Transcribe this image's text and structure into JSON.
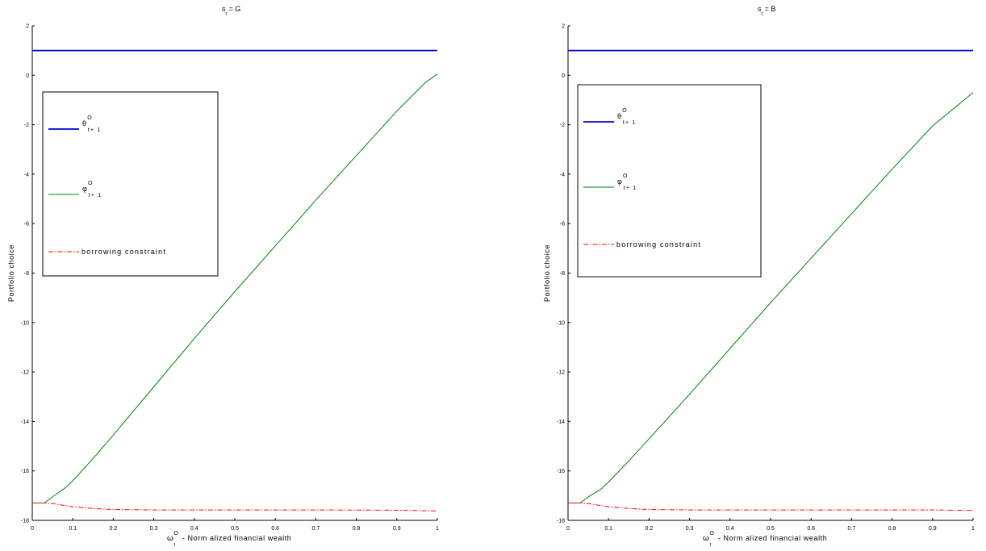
{
  "chart_data": [
    {
      "type": "line",
      "title": {
        "main": "s",
        "sub": "t",
        "tail": "=  G"
      },
      "xlabel": {
        "sym": "ω",
        "sup": "O",
        "sub": "t",
        "tail": "-  Norm alized financial wealth"
      },
      "ylabel": "Portfolio choice",
      "xlim": [
        0,
        1
      ],
      "ylim": [
        -18,
        2
      ],
      "xticks": [
        "0",
        "0.1",
        "0.2",
        "0.3",
        "0.4",
        "0.5",
        "0.6",
        "0.7",
        "0.8",
        "0.9",
        "1"
      ],
      "yticks": [
        "2",
        "0",
        "-2",
        "-4",
        "-6",
        "-8",
        "-10",
        "-12",
        "-14",
        "-16",
        "-18"
      ],
      "legend": [
        {
          "sym": "θ",
          "sup": "O",
          "sub": "t+ 1",
          "color": "#0000cc",
          "style": "solid"
        },
        {
          "sym": "φ",
          "sup": "O",
          "sub": "t+ 1",
          "color": "#008000",
          "style": "solid"
        },
        {
          "text": "borrowing constraint",
          "color": "#ff0000",
          "style": "dashdot"
        }
      ],
      "series": [
        {
          "color": "#0000cc",
          "style": "solid",
          "x": [
            0,
            1
          ],
          "y": [
            1,
            1
          ]
        },
        {
          "color": "#008000",
          "style": "solid",
          "x": [
            0,
            0.03,
            0.05,
            0.08,
            0.1,
            0.15,
            0.2,
            0.3,
            0.4,
            0.5,
            0.6,
            0.7,
            0.8,
            0.9,
            0.97,
            1
          ],
          "y": [
            -17.3,
            -17.3,
            -17.05,
            -16.7,
            -16.4,
            -15.5,
            -14.55,
            -12.6,
            -10.65,
            -8.75,
            -6.9,
            -5.05,
            -3.25,
            -1.45,
            -0.3,
            0.05
          ]
        },
        {
          "color": "#ff0000",
          "style": "dashdot",
          "x": [
            0,
            0.03,
            0.05,
            0.08,
            0.1,
            0.15,
            0.2,
            0.3,
            0.5,
            0.7,
            0.9,
            1
          ],
          "y": [
            -17.3,
            -17.3,
            -17.32,
            -17.4,
            -17.45,
            -17.52,
            -17.56,
            -17.58,
            -17.58,
            -17.58,
            -17.59,
            -17.62
          ]
        }
      ]
    },
    {
      "type": "line",
      "title": {
        "main": "s",
        "sub": "t",
        "tail": "=  B"
      },
      "xlabel": {
        "sym": "ω",
        "sup": "O",
        "sub": "t",
        "tail": "-  Norm alized financial wealth"
      },
      "ylabel": "Portfolio choice",
      "xlim": [
        0,
        1
      ],
      "ylim": [
        -18,
        2
      ],
      "xticks": [
        "0",
        "0.1",
        "0.2",
        "0.3",
        "0.4",
        "0.5",
        "0.6",
        "0.7",
        "0.8",
        "0.9",
        "1"
      ],
      "yticks": [
        "2",
        "0",
        "-2",
        "-4",
        "-6",
        "-8",
        "-10",
        "-12",
        "-14",
        "-16",
        "-18"
      ],
      "legend": [
        {
          "sym": "θ",
          "sup": "O",
          "sub": "t+ 1",
          "color": "#0000cc",
          "style": "solid"
        },
        {
          "sym": "φ",
          "sup": "O",
          "sub": "t+ 1",
          "color": "#008000",
          "style": "solid"
        },
        {
          "text": "borrowing constraint",
          "color": "#ff0000",
          "style": "dashdot"
        }
      ],
      "series": [
        {
          "color": "#0000cc",
          "style": "solid",
          "x": [
            0,
            1
          ],
          "y": [
            1,
            1
          ]
        },
        {
          "color": "#008000",
          "style": "solid",
          "x": [
            0,
            0.03,
            0.05,
            0.08,
            0.1,
            0.15,
            0.2,
            0.3,
            0.4,
            0.5,
            0.6,
            0.7,
            0.8,
            0.9,
            1
          ],
          "y": [
            -17.3,
            -17.3,
            -17.05,
            -16.75,
            -16.45,
            -15.6,
            -14.7,
            -12.9,
            -11.05,
            -9.2,
            -7.4,
            -5.6,
            -3.8,
            -2.05,
            -0.7
          ]
        },
        {
          "color": "#ff0000",
          "style": "dashdot",
          "x": [
            0,
            0.03,
            0.05,
            0.08,
            0.1,
            0.15,
            0.2,
            0.3,
            0.5,
            0.7,
            0.9,
            1
          ],
          "y": [
            -17.3,
            -17.3,
            -17.32,
            -17.4,
            -17.45,
            -17.52,
            -17.56,
            -17.58,
            -17.58,
            -17.58,
            -17.58,
            -17.6
          ]
        }
      ]
    }
  ]
}
